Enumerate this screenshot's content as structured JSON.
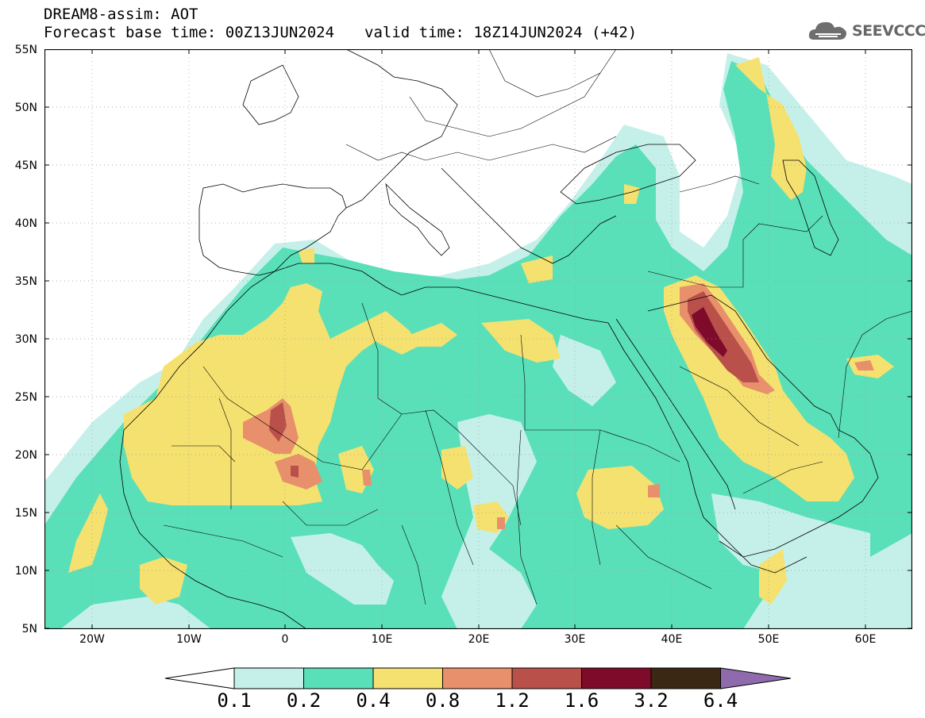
{
  "header": {
    "title_line1": "DREAM8-assim: AOT",
    "base_time": "Forecast base time: 00Z13JUN2024",
    "valid_time": "valid time: 18Z14JUN2024 (+42)"
  },
  "logo": {
    "text": "SEEVCCC",
    "icon": "cloud-icon"
  },
  "map": {
    "lat_labels": [
      "55N",
      "50N",
      "45N",
      "40N",
      "35N",
      "30N",
      "25N",
      "20N",
      "15N",
      "10N",
      "5N"
    ],
    "lon_labels": [
      "20W",
      "10W",
      "0",
      "10E",
      "20E",
      "30E",
      "40E",
      "50E",
      "60E"
    ],
    "lat_range": [
      5,
      55
    ],
    "lon_range": [
      -25,
      65
    ],
    "grid": "dotted"
  },
  "colorbar": {
    "labels": [
      "0.1",
      "0.2",
      "0.4",
      "0.8",
      "1.2",
      "1.6",
      "3.2",
      "6.4"
    ],
    "colors": [
      "#c5f0ea",
      "#5ae0b8",
      "#f5e170",
      "#e8906b",
      "#b9504a",
      "#7e0b2a",
      "#3a2814",
      "#8f6bae"
    ]
  },
  "colors": {
    "c1": "#c5f0ea",
    "c2": "#5ae0b8",
    "c3": "#f5e170",
    "c4": "#e8906b",
    "c5": "#b9504a",
    "c6": "#7e0b2a"
  }
}
